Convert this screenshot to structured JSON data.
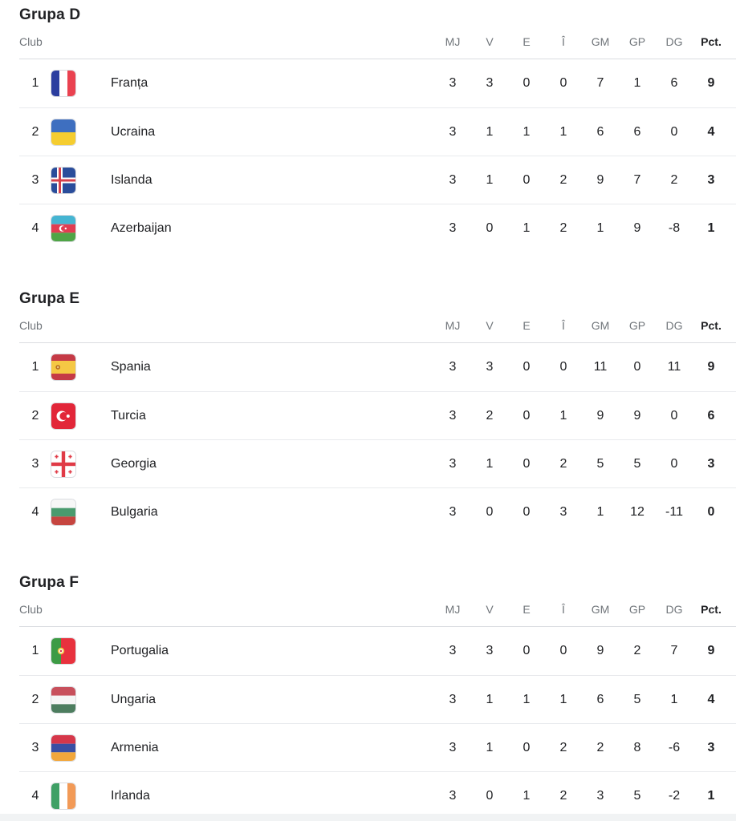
{
  "table_columns": {
    "club": "Club",
    "stats": [
      "MJ",
      "V",
      "E",
      "Î",
      "GM",
      "GP",
      "DG"
    ],
    "points": "Pct."
  },
  "colors": {
    "text": "#202124",
    "muted_header": "#70757a",
    "header_divider": "#dadce0",
    "row_divider": "#e8eaed",
    "bottom_band": "#f1f3f4"
  },
  "groups": [
    {
      "title": "Grupa D",
      "rows": [
        {
          "pos": "1",
          "team": "Franța",
          "flag_icon": "franta-flag-icon",
          "flag": {
            "kind": "v",
            "colors": [
              "#2b3e9f",
              "#ffffff",
              "#ea4250"
            ]
          },
          "stats": [
            "3",
            "3",
            "0",
            "0",
            "7",
            "1",
            "6"
          ],
          "points": "9"
        },
        {
          "pos": "2",
          "team": "Ucraina",
          "flag_icon": "ucraina-flag-icon",
          "flag": {
            "kind": "h",
            "colors": [
              "#3e6fc0",
              "#f5cd30"
            ]
          },
          "stats": [
            "3",
            "1",
            "1",
            "1",
            "6",
            "6",
            "0"
          ],
          "points": "4"
        },
        {
          "pos": "3",
          "team": "Islanda",
          "flag_icon": "islanda-flag-icon",
          "flag": {
            "kind": "nordic",
            "colors": [
              "#2a4d9b",
              "#ffffff",
              "#d6414d"
            ]
          },
          "stats": [
            "3",
            "1",
            "0",
            "2",
            "9",
            "7",
            "2"
          ],
          "points": "3"
        },
        {
          "pos": "4",
          "team": "Azerbaijan",
          "flag_icon": "azerbaijan-flag-icon",
          "flag": {
            "kind": "h",
            "colors": [
              "#45b5d2",
              "#e13d51",
              "#4fa546"
            ],
            "crescent": true
          },
          "stats": [
            "3",
            "0",
            "1",
            "2",
            "1",
            "9",
            "-8"
          ],
          "points": "1"
        }
      ]
    },
    {
      "title": "Grupa E",
      "rows": [
        {
          "pos": "1",
          "team": "Spania",
          "flag_icon": "spania-flag-icon",
          "flag": {
            "kind": "h",
            "colors": [
              "#c53a46",
              "#f5c844",
              "#c53a46"
            ],
            "weights": [
              1,
              2,
              1
            ],
            "emblem": "spain"
          },
          "stats": [
            "3",
            "3",
            "0",
            "0",
            "11",
            "0",
            "11"
          ],
          "points": "9"
        },
        {
          "pos": "2",
          "team": "Turcia",
          "flag_icon": "turcia-flag-icon",
          "flag": {
            "kind": "turkey",
            "colors": [
              "#e22639"
            ]
          },
          "stats": [
            "3",
            "2",
            "0",
            "1",
            "9",
            "9",
            "0"
          ],
          "points": "6"
        },
        {
          "pos": "3",
          "team": "Georgia",
          "flag_icon": "georgia-flag-icon",
          "flag": {
            "kind": "georgia",
            "colors": [
              "#ffffff",
              "#e03a46"
            ]
          },
          "stats": [
            "3",
            "1",
            "0",
            "2",
            "5",
            "5",
            "0"
          ],
          "points": "3"
        },
        {
          "pos": "4",
          "team": "Bulgaria",
          "flag_icon": "bulgaria-flag-icon",
          "flag": {
            "kind": "h",
            "colors": [
              "#f7f7f7",
              "#4a9b6e",
              "#c64540"
            ]
          },
          "stats": [
            "3",
            "0",
            "0",
            "3",
            "1",
            "12",
            "-11"
          ],
          "points": "0"
        }
      ]
    },
    {
      "title": "Grupa F",
      "rows": [
        {
          "pos": "1",
          "team": "Portugalia",
          "flag_icon": "portugalia-flag-icon",
          "flag": {
            "kind": "v",
            "colors": [
              "#3d9b45",
              "#e8323e"
            ],
            "weights": [
              2,
              3
            ],
            "emblem": "portugal"
          },
          "stats": [
            "3",
            "3",
            "0",
            "0",
            "9",
            "2",
            "7"
          ],
          "points": "9"
        },
        {
          "pos": "2",
          "team": "Ungaria",
          "flag_icon": "ungaria-flag-icon",
          "flag": {
            "kind": "h",
            "colors": [
              "#c8505c",
              "#f5f5f5",
              "#4d7d5f"
            ]
          },
          "stats": [
            "3",
            "1",
            "1",
            "1",
            "6",
            "5",
            "1"
          ],
          "points": "4"
        },
        {
          "pos": "3",
          "team": "Armenia",
          "flag_icon": "armenia-flag-icon",
          "flag": {
            "kind": "h",
            "colors": [
              "#d6374a",
              "#3a4fa3",
              "#f2a73b"
            ]
          },
          "stats": [
            "3",
            "1",
            "0",
            "2",
            "2",
            "8",
            "-6"
          ],
          "points": "3"
        },
        {
          "pos": "4",
          "team": "Irlanda",
          "flag_icon": "irlanda-flag-icon",
          "flag": {
            "kind": "v",
            "colors": [
              "#3fa066",
              "#ffffff",
              "#f29a57"
            ]
          },
          "stats": [
            "3",
            "0",
            "1",
            "2",
            "3",
            "5",
            "-2"
          ],
          "points": "1"
        }
      ]
    }
  ]
}
